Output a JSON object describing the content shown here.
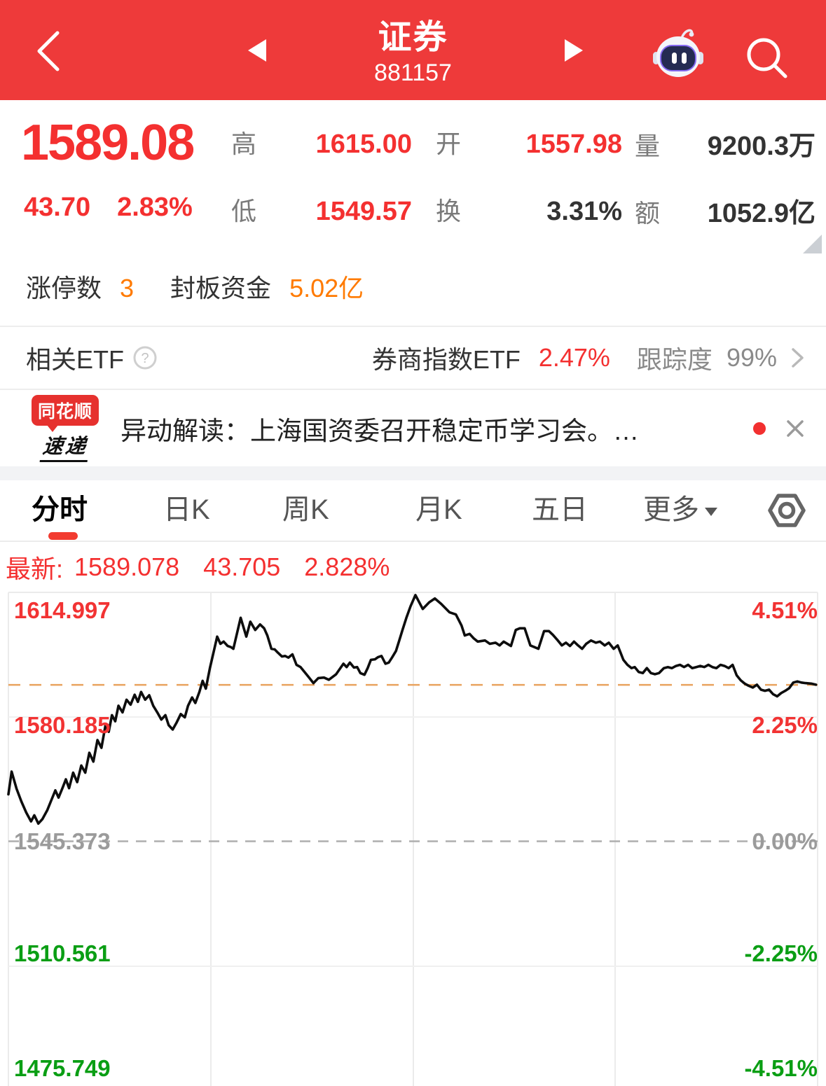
{
  "colors": {
    "red": "#f43030",
    "header_bg": "#ee3a3a",
    "orange": "#ff7a00",
    "green": "#0aa00a",
    "grid": "#ececec",
    "line": "#0d0d0d",
    "avg_line": "#e9a35f",
    "tick_gray": "#9b9b9b"
  },
  "header": {
    "title": "证券",
    "code": "881157"
  },
  "quote": {
    "price": "1589.08",
    "change": "43.70",
    "change_pct": "2.83%",
    "stats": [
      {
        "label": "高",
        "value": "1615.00",
        "cls": "vl red"
      },
      {
        "label": "开",
        "value": "1557.98",
        "cls": "vl red"
      },
      {
        "label": "量",
        "value": "9200.3万",
        "cls": "vl"
      },
      {
        "label": "低",
        "value": "1549.57",
        "cls": "vl red"
      },
      {
        "label": "换",
        "value": "3.31%",
        "cls": "vl"
      },
      {
        "label": "额",
        "value": "1052.9亿",
        "cls": "vl"
      }
    ],
    "limit_up_label": "涨停数",
    "limit_up_count": "3",
    "seal_fund_label": "封板资金",
    "seal_fund_value": "5.02亿"
  },
  "etf": {
    "left_label": "相关ETF",
    "name": "券商指数ETF",
    "pct": "2.47%",
    "tracking_label": "跟踪度",
    "tracking_value": "99%"
  },
  "news": {
    "brand_top": "同花顺",
    "brand_bottom": "速递",
    "text": "异动解读：上海国资委召开稳定币学习会。…"
  },
  "tabs": {
    "items": [
      "分时",
      "日K",
      "周K",
      "月K",
      "五日"
    ],
    "more_label": "更多",
    "active": "分时"
  },
  "latest": {
    "label": "最新:",
    "price": "1589.078",
    "change": "43.705",
    "pct": "2.828%"
  },
  "icons": {
    "back": "chevron-left",
    "prev": "triangle-left",
    "next": "triangle-right",
    "assistant": "robot-face",
    "search": "magnifier",
    "help": "circled-question-mark",
    "forward": "chevron-right",
    "close": "x-cross",
    "settings": "hex-nut",
    "expand": "corner-triangle"
  },
  "chart_data": {
    "type": "line",
    "left_axis_labels": [
      {
        "text": "1614.997",
        "cls": "c-red"
      },
      {
        "text": "1580.185",
        "cls": "c-red"
      },
      {
        "text": "1545.373",
        "cls": "c-gray"
      },
      {
        "text": "1510.561",
        "cls": "c-green"
      },
      {
        "text": "1475.749",
        "cls": "c-green"
      }
    ],
    "right_axis_labels": [
      {
        "text": "4.51%",
        "cls": "c-red"
      },
      {
        "text": "2.25%",
        "cls": "c-red"
      },
      {
        "text": "0.00%",
        "cls": "c-gray"
      },
      {
        "text": "-2.25%",
        "cls": "c-green"
      },
      {
        "text": "-4.51%",
        "cls": "c-green"
      }
    ],
    "prev_close": 1545.373,
    "current_price": 1589.078,
    "current_pct": 2.828,
    "ylim_pct": [
      -4.51,
      4.51
    ],
    "zero_line_pct": 0,
    "grid": {
      "vertical_t": [
        0.25,
        0.5,
        0.75
      ],
      "horizontal_pct": [
        4.51,
        2.255,
        0,
        -2.255,
        -4.51
      ]
    },
    "legend": "none",
    "xlabel": "",
    "ylabel": "",
    "series": [
      {
        "name": "intraday_change_pct",
        "points": [
          [
            0.0,
            0.85
          ],
          [
            0.004,
            1.26
          ],
          [
            0.01,
            0.95
          ],
          [
            0.016,
            0.72
          ],
          [
            0.022,
            0.52
          ],
          [
            0.028,
            0.36
          ],
          [
            0.032,
            0.47
          ],
          [
            0.037,
            0.32
          ],
          [
            0.042,
            0.4
          ],
          [
            0.048,
            0.56
          ],
          [
            0.053,
            0.74
          ],
          [
            0.058,
            0.92
          ],
          [
            0.062,
            0.79
          ],
          [
            0.067,
            0.97
          ],
          [
            0.071,
            1.12
          ],
          [
            0.075,
            0.96
          ],
          [
            0.08,
            1.24
          ],
          [
            0.085,
            1.07
          ],
          [
            0.09,
            1.37
          ],
          [
            0.095,
            1.24
          ],
          [
            0.1,
            1.6
          ],
          [
            0.105,
            1.44
          ],
          [
            0.11,
            1.83
          ],
          [
            0.115,
            1.69
          ],
          [
            0.12,
            2.1
          ],
          [
            0.124,
            1.98
          ],
          [
            0.128,
            2.28
          ],
          [
            0.132,
            2.17
          ],
          [
            0.136,
            2.45
          ],
          [
            0.141,
            2.33
          ],
          [
            0.146,
            2.56
          ],
          [
            0.151,
            2.47
          ],
          [
            0.156,
            2.65
          ],
          [
            0.16,
            2.52
          ],
          [
            0.164,
            2.7
          ],
          [
            0.169,
            2.56
          ],
          [
            0.174,
            2.64
          ],
          [
            0.179,
            2.45
          ],
          [
            0.184,
            2.33
          ],
          [
            0.189,
            2.2
          ],
          [
            0.194,
            2.28
          ],
          [
            0.198,
            2.1
          ],
          [
            0.203,
            2.02
          ],
          [
            0.208,
            2.15
          ],
          [
            0.213,
            2.3
          ],
          [
            0.218,
            2.24
          ],
          [
            0.222,
            2.45
          ],
          [
            0.227,
            2.6
          ],
          [
            0.231,
            2.5
          ],
          [
            0.236,
            2.7
          ],
          [
            0.24,
            2.9
          ],
          [
            0.244,
            2.76
          ],
          [
            0.249,
            3.13
          ],
          [
            0.258,
            3.7
          ],
          [
            0.262,
            3.57
          ],
          [
            0.266,
            3.61
          ],
          [
            0.271,
            3.53
          ],
          [
            0.275,
            3.51
          ],
          [
            0.278,
            3.48
          ],
          [
            0.287,
            4.04
          ],
          [
            0.294,
            3.7
          ],
          [
            0.299,
            3.97
          ],
          [
            0.305,
            3.82
          ],
          [
            0.311,
            3.92
          ],
          [
            0.316,
            3.85
          ],
          [
            0.32,
            3.72
          ],
          [
            0.325,
            3.48
          ],
          [
            0.329,
            3.47
          ],
          [
            0.333,
            3.41
          ],
          [
            0.338,
            3.34
          ],
          [
            0.342,
            3.35
          ],
          [
            0.346,
            3.32
          ],
          [
            0.351,
            3.38
          ],
          [
            0.356,
            3.19
          ],
          [
            0.361,
            3.15
          ],
          [
            0.366,
            3.06
          ],
          [
            0.371,
            2.97
          ],
          [
            0.377,
            2.86
          ],
          [
            0.383,
            2.95
          ],
          [
            0.39,
            2.96
          ],
          [
            0.396,
            2.92
          ],
          [
            0.405,
            3.02
          ],
          [
            0.414,
            3.21
          ],
          [
            0.418,
            3.15
          ],
          [
            0.422,
            3.23
          ],
          [
            0.427,
            3.14
          ],
          [
            0.431,
            3.15
          ],
          [
            0.435,
            3.04
          ],
          [
            0.44,
            3.01
          ],
          [
            0.444,
            3.13
          ],
          [
            0.448,
            3.28
          ],
          [
            0.453,
            3.29
          ],
          [
            0.457,
            3.33
          ],
          [
            0.461,
            3.35
          ],
          [
            0.466,
            3.21
          ],
          [
            0.47,
            3.23
          ],
          [
            0.474,
            3.32
          ],
          [
            0.479,
            3.44
          ],
          [
            0.483,
            3.63
          ],
          [
            0.487,
            3.82
          ],
          [
            0.492,
            4.05
          ],
          [
            0.497,
            4.25
          ],
          [
            0.503,
            4.45
          ],
          [
            0.512,
            4.2
          ],
          [
            0.52,
            4.32
          ],
          [
            0.527,
            4.39
          ],
          [
            0.535,
            4.29
          ],
          [
            0.545,
            4.14
          ],
          [
            0.553,
            4.1
          ],
          [
            0.56,
            3.9
          ],
          [
            0.564,
            3.72
          ],
          [
            0.57,
            3.75
          ],
          [
            0.575,
            3.67
          ],
          [
            0.58,
            3.61
          ],
          [
            0.589,
            3.63
          ],
          [
            0.595,
            3.57
          ],
          [
            0.602,
            3.59
          ],
          [
            0.607,
            3.54
          ],
          [
            0.612,
            3.61
          ],
          [
            0.621,
            3.53
          ],
          [
            0.627,
            3.82
          ],
          [
            0.632,
            3.85
          ],
          [
            0.638,
            3.85
          ],
          [
            0.645,
            3.54
          ],
          [
            0.65,
            3.51
          ],
          [
            0.655,
            3.48
          ],
          [
            0.662,
            3.8
          ],
          [
            0.668,
            3.8
          ],
          [
            0.673,
            3.73
          ],
          [
            0.679,
            3.63
          ],
          [
            0.684,
            3.54
          ],
          [
            0.689,
            3.59
          ],
          [
            0.694,
            3.53
          ],
          [
            0.699,
            3.61
          ],
          [
            0.704,
            3.54
          ],
          [
            0.709,
            3.48
          ],
          [
            0.714,
            3.57
          ],
          [
            0.72,
            3.63
          ],
          [
            0.726,
            3.59
          ],
          [
            0.731,
            3.61
          ],
          [
            0.737,
            3.54
          ],
          [
            0.742,
            3.59
          ],
          [
            0.748,
            3.48
          ],
          [
            0.753,
            3.54
          ],
          [
            0.76,
            3.28
          ],
          [
            0.765,
            3.19
          ],
          [
            0.77,
            3.13
          ],
          [
            0.774,
            3.15
          ],
          [
            0.779,
            3.06
          ],
          [
            0.784,
            3.04
          ],
          [
            0.789,
            3.13
          ],
          [
            0.794,
            3.04
          ],
          [
            0.799,
            3.02
          ],
          [
            0.804,
            3.04
          ],
          [
            0.81,
            3.13
          ],
          [
            0.815,
            3.15
          ],
          [
            0.82,
            3.13
          ],
          [
            0.825,
            3.17
          ],
          [
            0.83,
            3.19
          ],
          [
            0.835,
            3.15
          ],
          [
            0.84,
            3.19
          ],
          [
            0.845,
            3.13
          ],
          [
            0.85,
            3.15
          ],
          [
            0.855,
            3.17
          ],
          [
            0.86,
            3.15
          ],
          [
            0.865,
            3.19
          ],
          [
            0.87,
            3.15
          ],
          [
            0.875,
            3.13
          ],
          [
            0.88,
            3.19
          ],
          [
            0.885,
            3.17
          ],
          [
            0.89,
            3.13
          ],
          [
            0.895,
            3.19
          ],
          [
            0.9,
            3.0
          ],
          [
            0.905,
            2.91
          ],
          [
            0.91,
            2.85
          ],
          [
            0.915,
            2.81
          ],
          [
            0.92,
            2.78
          ],
          [
            0.925,
            2.83
          ],
          [
            0.93,
            2.74
          ],
          [
            0.935,
            2.72
          ],
          [
            0.94,
            2.74
          ],
          [
            0.945,
            2.66
          ],
          [
            0.95,
            2.62
          ],
          [
            0.955,
            2.68
          ],
          [
            0.96,
            2.72
          ],
          [
            0.965,
            2.77
          ],
          [
            0.97,
            2.87
          ],
          [
            0.975,
            2.89
          ],
          [
            0.98,
            2.87
          ],
          [
            0.985,
            2.86
          ],
          [
            0.992,
            2.85
          ],
          [
            0.998,
            2.83
          ]
        ]
      }
    ]
  }
}
